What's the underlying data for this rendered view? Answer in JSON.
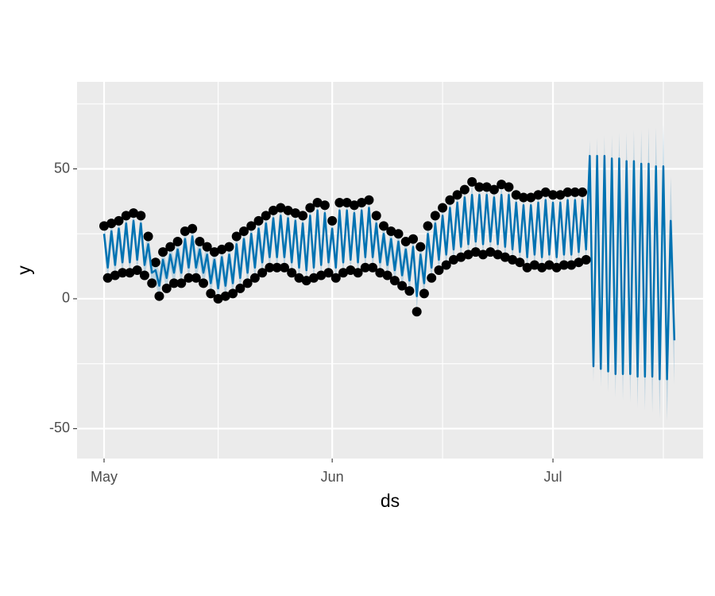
{
  "chart_data": {
    "type": "line",
    "x_label": "ds",
    "y_label": "y",
    "xlim": [
      -3.67,
      81.4
    ],
    "ylim": [
      -61.5,
      83.5
    ],
    "xticks": [
      {
        "value": 0,
        "label": "May"
      },
      {
        "value": 31,
        "label": "Jun"
      },
      {
        "value": 61,
        "label": "Jul"
      }
    ],
    "yticks": [
      -50,
      0,
      50
    ],
    "grid": true,
    "x": [
      0,
      0.5,
      1,
      1.5,
      2,
      2.5,
      3,
      3.5,
      4,
      4.5,
      5,
      5.5,
      6,
      6.5,
      7,
      7.5,
      8,
      8.5,
      9,
      9.5,
      10,
      10.5,
      11,
      11.5,
      12,
      12.5,
      13,
      13.5,
      14,
      14.5,
      15,
      15.5,
      16,
      16.5,
      17,
      17.5,
      18,
      18.5,
      19,
      19.5,
      20,
      20.5,
      21,
      21.5,
      22,
      22.5,
      23,
      23.5,
      24,
      24.5,
      25,
      25.5,
      26,
      26.5,
      27,
      27.5,
      28,
      28.5,
      29,
      29.5,
      30,
      30.5,
      31,
      31.5,
      32,
      32.5,
      33,
      33.5,
      34,
      34.5,
      35,
      35.5,
      36,
      36.5,
      37,
      37.5,
      38,
      38.5,
      39,
      39.5,
      40,
      40.5,
      41,
      41.5,
      42,
      42.5,
      43,
      43.5,
      44,
      44.5,
      45,
      45.5,
      46,
      46.5,
      47,
      47.5,
      48,
      48.5,
      49,
      49.5,
      50,
      50.5,
      51,
      51.5,
      52,
      52.5,
      53,
      53.5,
      54,
      54.5,
      55,
      55.5,
      56,
      56.5,
      57,
      57.5,
      58,
      58.5,
      59,
      59.5,
      60,
      60.5,
      61,
      61.5,
      62,
      62.5,
      63,
      63.5,
      64,
      64.5,
      65,
      65.5,
      66,
      66.5,
      67,
      67.5,
      68,
      68.5,
      69,
      69.5,
      70,
      70.5,
      71,
      71.5,
      72,
      72.5,
      73,
      73.5,
      74,
      74.5,
      75,
      75.5,
      76,
      76.5,
      77,
      77.5
    ],
    "observed": {
      "color": "#000000",
      "values": [
        28,
        8,
        29,
        9,
        30,
        10,
        32,
        10,
        33,
        11,
        32,
        9,
        24,
        6,
        14,
        1,
        18,
        4,
        20,
        6,
        22,
        6,
        26,
        8,
        27,
        8,
        22,
        6,
        20,
        2,
        18,
        0,
        19,
        1,
        20,
        2,
        24,
        4,
        26,
        6,
        28,
        8,
        30,
        10,
        32,
        12,
        34,
        12,
        35,
        12,
        34,
        10,
        33,
        8,
        32,
        7,
        35,
        8,
        37,
        9,
        36,
        10,
        30,
        8,
        37,
        10,
        37,
        11,
        36,
        10,
        37,
        12,
        38,
        12,
        32,
        10,
        28,
        9,
        26,
        7,
        25,
        5,
        22,
        3,
        23,
        -5,
        20,
        2,
        28,
        8,
        32,
        11,
        35,
        13,
        38,
        15,
        40,
        16,
        42,
        17,
        45,
        18,
        43,
        17,
        43,
        18,
        42,
        17,
        44,
        16,
        43,
        15,
        40,
        14,
        39,
        12,
        39,
        13,
        40,
        12,
        41,
        13,
        40,
        12,
        40,
        13,
        41,
        13,
        41,
        14,
        41,
        15,
        null,
        null,
        null,
        null,
        null,
        null,
        null,
        null,
        null,
        null,
        null,
        null,
        null,
        null,
        null,
        null,
        null,
        null,
        null,
        null,
        null,
        null,
        null,
        null
      ]
    },
    "forecast": {
      "color": "#0072B2",
      "band_color": "#0072B2",
      "values": [
        25,
        12,
        26,
        13,
        27,
        14,
        29,
        14,
        30,
        15,
        29,
        13,
        21,
        10,
        11,
        5,
        15,
        8,
        17,
        10,
        19,
        10,
        23,
        12,
        24,
        12,
        19,
        10,
        17,
        6,
        15,
        4,
        16,
        5,
        17,
        6,
        21,
        8,
        23,
        10,
        25,
        12,
        27,
        14,
        29,
        16,
        31,
        16,
        32,
        16,
        31,
        14,
        30,
        12,
        29,
        11,
        32,
        12,
        34,
        13,
        33,
        14,
        27,
        12,
        34,
        14,
        34,
        15,
        33,
        14,
        34,
        16,
        35,
        16,
        29,
        14,
        25,
        13,
        23,
        11,
        22,
        9,
        19,
        7,
        20,
        1,
        17,
        6,
        25,
        12,
        29,
        15,
        32,
        17,
        35,
        19,
        37,
        20,
        39,
        21,
        40,
        22,
        40,
        21,
        40,
        22,
        39,
        21,
        40,
        20,
        40,
        19,
        37,
        18,
        36,
        16,
        36,
        17,
        37,
        16,
        38,
        17,
        37,
        16,
        37,
        17,
        38,
        17,
        38,
        18,
        38,
        19,
        55,
        -26,
        55,
        -27,
        55,
        -28,
        54,
        -29,
        54,
        -29,
        53,
        -29,
        53,
        -30,
        52,
        -30,
        52,
        -30,
        51,
        -31,
        51,
        -31,
        30,
        -16
      ],
      "lower": [
        20,
        7,
        21,
        8,
        22,
        9,
        24,
        9,
        25,
        10,
        24,
        8,
        16,
        5,
        6,
        0,
        10,
        3,
        12,
        5,
        14,
        5,
        18,
        7,
        19,
        7,
        14,
        5,
        12,
        1,
        10,
        -1,
        11,
        0,
        12,
        1,
        16,
        3,
        18,
        5,
        20,
        7,
        22,
        9,
        24,
        11,
        26,
        11,
        27,
        11,
        26,
        9,
        25,
        7,
        24,
        6,
        27,
        7,
        29,
        8,
        28,
        9,
        22,
        7,
        29,
        9,
        29,
        10,
        28,
        9,
        29,
        11,
        30,
        11,
        24,
        9,
        20,
        8,
        18,
        6,
        17,
        4,
        14,
        2,
        15,
        -4,
        12,
        1,
        20,
        7,
        24,
        10,
        27,
        12,
        30,
        14,
        32,
        15,
        34,
        16,
        35,
        17,
        35,
        16,
        35,
        17,
        34,
        16,
        35,
        15,
        35,
        14,
        32,
        13,
        31,
        11,
        31,
        12,
        32,
        11,
        33,
        12,
        32,
        11,
        32,
        12,
        33,
        12,
        33,
        13,
        33,
        14,
        49,
        -32,
        48,
        -34,
        47,
        -36,
        45,
        -38,
        44,
        -39,
        42,
        -40,
        41,
        -42,
        39,
        -43,
        38,
        -44,
        36,
        -46,
        35,
        -47,
        13,
        -33
      ],
      "upper": [
        30,
        17,
        31,
        18,
        32,
        19,
        34,
        19,
        35,
        20,
        34,
        18,
        26,
        15,
        16,
        10,
        20,
        13,
        22,
        15,
        24,
        15,
        28,
        17,
        29,
        17,
        24,
        15,
        22,
        11,
        20,
        9,
        21,
        10,
        22,
        11,
        26,
        13,
        28,
        15,
        30,
        17,
        32,
        19,
        34,
        21,
        36,
        21,
        37,
        21,
        36,
        19,
        35,
        17,
        34,
        16,
        37,
        17,
        39,
        18,
        38,
        19,
        32,
        17,
        39,
        19,
        39,
        20,
        38,
        19,
        39,
        21,
        40,
        21,
        34,
        19,
        30,
        18,
        28,
        16,
        27,
        14,
        24,
        12,
        25,
        6,
        22,
        11,
        30,
        17,
        34,
        20,
        37,
        22,
        40,
        24,
        42,
        25,
        44,
        26,
        45,
        27,
        45,
        26,
        45,
        27,
        44,
        26,
        45,
        25,
        45,
        24,
        42,
        23,
        41,
        21,
        41,
        22,
        42,
        21,
        43,
        22,
        42,
        21,
        42,
        22,
        43,
        22,
        43,
        23,
        43,
        24,
        61,
        -20,
        62,
        -20,
        63,
        -20,
        63,
        -20,
        64,
        -19,
        64,
        -18,
        65,
        -18,
        65,
        -17,
        66,
        -16,
        66,
        -16,
        67,
        -15,
        47,
        1
      ]
    }
  }
}
